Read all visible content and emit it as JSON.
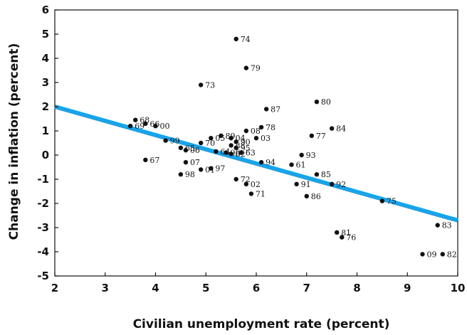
{
  "chart_data": {
    "type": "scatter",
    "xlabel": "Civilian unemployment rate (percent)",
    "ylabel": "Change in inflation (percent)",
    "xlim": [
      2,
      10
    ],
    "ylim": [
      -5,
      6
    ],
    "x_ticks": [
      "2",
      "3",
      "4",
      "5",
      "6",
      "7",
      "8",
      "9",
      "10"
    ],
    "y_ticks": [
      "-5",
      "-4",
      "-3",
      "-2",
      "-1",
      "0",
      "1",
      "2",
      "3",
      "4",
      "5",
      "6"
    ],
    "grid": false,
    "point_color": "#111111",
    "trend_color": "#1aa3e8",
    "trendline": {
      "x": [
        2,
        10
      ],
      "y": [
        2.0,
        -2.7
      ]
    },
    "points": [
      {
        "label": "74",
        "x": 5.6,
        "y": 4.8
      },
      {
        "label": "79",
        "x": 5.8,
        "y": 3.6
      },
      {
        "label": "73",
        "x": 4.9,
        "y": 2.9
      },
      {
        "label": "80",
        "x": 7.2,
        "y": 2.2
      },
      {
        "label": "87",
        "x": 6.2,
        "y": 1.9
      },
      {
        "label": "84",
        "x": 7.5,
        "y": 1.1
      },
      {
        "label": "68",
        "x": 3.6,
        "y": 1.45
      },
      {
        "label": "66",
        "x": 3.8,
        "y": 1.3
      },
      {
        "label": "00",
        "x": 4.0,
        "y": 1.2
      },
      {
        "label": "69",
        "x": 3.5,
        "y": 1.2
      },
      {
        "label": "99",
        "x": 4.2,
        "y": 0.6
      },
      {
        "label": "05",
        "x": 5.1,
        "y": 0.7
      },
      {
        "label": "89",
        "x": 5.3,
        "y": 0.8
      },
      {
        "label": "08",
        "x": 5.8,
        "y": 1.0
      },
      {
        "label": "78",
        "x": 6.1,
        "y": 1.15
      },
      {
        "label": "04",
        "x": 5.5,
        "y": 0.7
      },
      {
        "label": "70",
        "x": 4.9,
        "y": 0.5
      },
      {
        "label": "90",
        "x": 5.6,
        "y": 0.55
      },
      {
        "label": "03",
        "x": 6.0,
        "y": 0.7
      },
      {
        "label": "77",
        "x": 7.1,
        "y": 0.8
      },
      {
        "label": "65",
        "x": 4.5,
        "y": 0.3
      },
      {
        "label": "88",
        "x": 5.5,
        "y": 0.4
      },
      {
        "label": "95",
        "x": 5.6,
        "y": 0.3
      },
      {
        "label": "06",
        "x": 4.6,
        "y": 0.2
      },
      {
        "label": "63",
        "x": 5.7,
        "y": 0.1
      },
      {
        "label": "93",
        "x": 6.9,
        "y": 0.0
      },
      {
        "label": "64",
        "x": 5.2,
        "y": 0.15
      },
      {
        "label": "96",
        "x": 5.4,
        "y": 0.1
      },
      {
        "label": "62",
        "x": 5.5,
        "y": 0.05
      },
      {
        "label": "67",
        "x": 3.8,
        "y": -0.2
      },
      {
        "label": "07",
        "x": 4.6,
        "y": -0.3
      },
      {
        "label": "94",
        "x": 6.1,
        "y": -0.3
      },
      {
        "label": "61",
        "x": 6.7,
        "y": -0.4
      },
      {
        "label": "98",
        "x": 4.5,
        "y": -0.8
      },
      {
        "label": "01",
        "x": 4.9,
        "y": -0.6
      },
      {
        "label": "97",
        "x": 5.1,
        "y": -0.55
      },
      {
        "label": "85",
        "x": 7.2,
        "y": -0.8
      },
      {
        "label": "72",
        "x": 5.6,
        "y": -1.0
      },
      {
        "label": "02",
        "x": 5.8,
        "y": -1.2
      },
      {
        "label": "91",
        "x": 6.8,
        "y": -1.2
      },
      {
        "label": "92",
        "x": 7.5,
        "y": -1.2
      },
      {
        "label": "71",
        "x": 5.9,
        "y": -1.6
      },
      {
        "label": "86",
        "x": 7.0,
        "y": -1.7
      },
      {
        "label": "75",
        "x": 8.5,
        "y": -1.9
      },
      {
        "label": "81",
        "x": 7.6,
        "y": -3.2
      },
      {
        "label": "83",
        "x": 9.6,
        "y": -2.9
      },
      {
        "label": "76",
        "x": 7.7,
        "y": -3.4
      },
      {
        "label": "09",
        "x": 9.3,
        "y": -4.1
      },
      {
        "label": "82",
        "x": 9.7,
        "y": -4.1
      }
    ]
  }
}
